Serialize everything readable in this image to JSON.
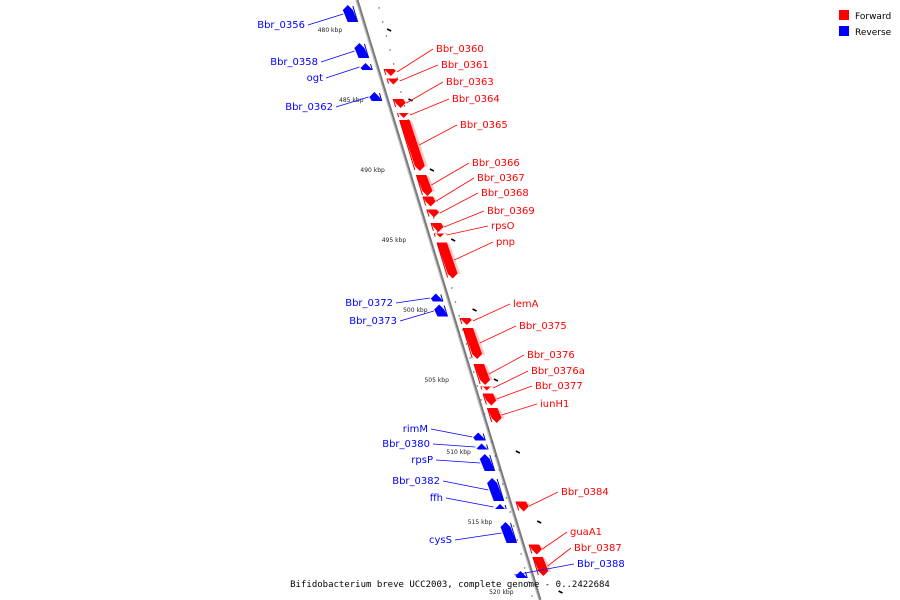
{
  "legend": {
    "forward_label": "Forward",
    "reverse_label": "Reverse",
    "forward_color": "#ff0000",
    "reverse_color": "#0000ff"
  },
  "footer": "Bifidobacterium breve UCC2003, complete genome - 0..2422684",
  "ticks": [
    {
      "label": "480 kbp",
      "kbp": 480
    },
    {
      "label": "485 kbp",
      "kbp": 485
    },
    {
      "label": "490 kbp",
      "kbp": 490
    },
    {
      "label": "495 kbp",
      "kbp": 495
    },
    {
      "label": "500 kbp",
      "kbp": 500
    },
    {
      "label": "505 kbp",
      "kbp": 505
    },
    {
      "label": "510 kbp",
      "kbp": 510
    },
    {
      "label": "515 kbp",
      "kbp": 515
    },
    {
      "label": "520 kbp",
      "kbp": 520
    }
  ],
  "genes": [
    {
      "name": "Bbr_0356",
      "strand": "reverse"
    },
    {
      "name": "Bbr_0358",
      "strand": "reverse"
    },
    {
      "name": "ogt",
      "strand": "reverse"
    },
    {
      "name": "Bbr_0362",
      "strand": "reverse"
    },
    {
      "name": "Bbr_0360",
      "strand": "forward"
    },
    {
      "name": "Bbr_0361",
      "strand": "forward"
    },
    {
      "name": "Bbr_0363",
      "strand": "forward"
    },
    {
      "name": "Bbr_0364",
      "strand": "forward"
    },
    {
      "name": "Bbr_0365",
      "strand": "forward"
    },
    {
      "name": "Bbr_0366",
      "strand": "forward"
    },
    {
      "name": "Bbr_0367",
      "strand": "forward"
    },
    {
      "name": "Bbr_0368",
      "strand": "forward"
    },
    {
      "name": "Bbr_0369",
      "strand": "forward"
    },
    {
      "name": "rpsO",
      "strand": "forward"
    },
    {
      "name": "pnp",
      "strand": "forward"
    },
    {
      "name": "Bbr_0372",
      "strand": "reverse"
    },
    {
      "name": "Bbr_0373",
      "strand": "reverse"
    },
    {
      "name": "lemA",
      "strand": "forward"
    },
    {
      "name": "Bbr_0375",
      "strand": "forward"
    },
    {
      "name": "Bbr_0376",
      "strand": "forward"
    },
    {
      "name": "Bbr_0376a",
      "strand": "forward"
    },
    {
      "name": "Bbr_0377",
      "strand": "forward"
    },
    {
      "name": "iunH1",
      "strand": "forward"
    },
    {
      "name": "rimM",
      "strand": "reverse"
    },
    {
      "name": "Bbr_0380",
      "strand": "reverse"
    },
    {
      "name": "rpsP",
      "strand": "reverse"
    },
    {
      "name": "Bbr_0382",
      "strand": "reverse"
    },
    {
      "name": "ffh",
      "strand": "reverse"
    },
    {
      "name": "Bbr_0384",
      "strand": "forward"
    },
    {
      "name": "cysS",
      "strand": "reverse"
    },
    {
      "name": "guaA1",
      "strand": "forward"
    },
    {
      "name": "Bbr_0387",
      "strand": "forward"
    },
    {
      "name": "Bbr_0388",
      "strand": "reverse"
    }
  ]
}
